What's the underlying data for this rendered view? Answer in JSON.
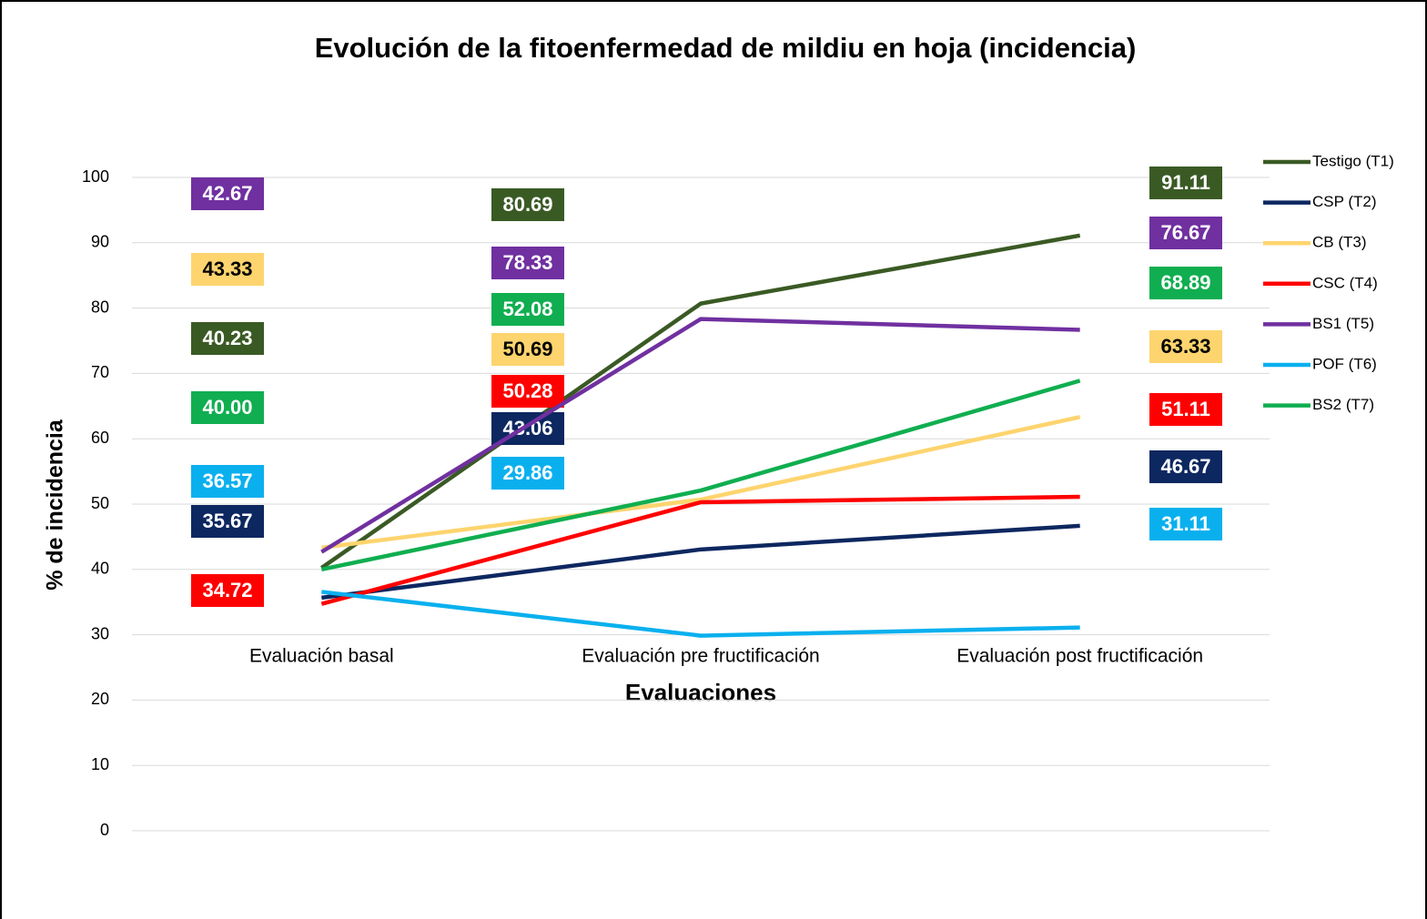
{
  "chart_data": {
    "type": "line",
    "title": "Evolución de la fitoenfermedad de mildiu en hoja (incidencia)",
    "x_label": "Evaluaciones",
    "y_label": "% de incidencia",
    "categories": [
      "Evaluación basal",
      "Evaluación pre fructificación",
      "Evaluación post fructificación"
    ],
    "ylim": [
      0,
      100
    ],
    "yticks": [
      0,
      10,
      20,
      30,
      40,
      50,
      60,
      70,
      80,
      90,
      100
    ],
    "grid": true,
    "legend": "right",
    "series": [
      {
        "name": "Testigo (T1)",
        "color": "#3a5a24",
        "values": [
          40.23,
          80.69,
          91.11
        ],
        "value_labels": [
          "40.23",
          "80.69",
          "91.11"
        ]
      },
      {
        "name": "CSP (T2)",
        "color": "#0d2760",
        "values": [
          35.67,
          43.06,
          46.67
        ],
        "value_labels": [
          "35.67",
          "43.06",
          "46.67"
        ]
      },
      {
        "name": "CB (T3)",
        "color": "#fdd46e",
        "values": [
          43.33,
          50.69,
          63.33
        ],
        "value_labels": [
          "43.33",
          "50.69",
          "63.33"
        ]
      },
      {
        "name": "CSC (T4)",
        "color": "#ff0000",
        "values": [
          34.72,
          50.28,
          51.11
        ],
        "value_labels": [
          "34.72",
          "50.28",
          "51.11"
        ]
      },
      {
        "name": "BS1 (T5)",
        "color": "#7030a0",
        "values": [
          42.67,
          78.33,
          76.67
        ],
        "value_labels": [
          "42.67",
          "78.33",
          "76.67"
        ]
      },
      {
        "name": "POF (T6)",
        "color": "#0ab0ee",
        "values": [
          36.57,
          29.86,
          31.11
        ],
        "value_labels": [
          "36.57",
          "29.86",
          "31.11"
        ]
      },
      {
        "name": "BS2 (T7)",
        "color": "#10ae50",
        "values": [
          40.0,
          52.08,
          68.89
        ],
        "value_labels": [
          "40.00",
          "52.08",
          "68.89"
        ]
      }
    ]
  }
}
